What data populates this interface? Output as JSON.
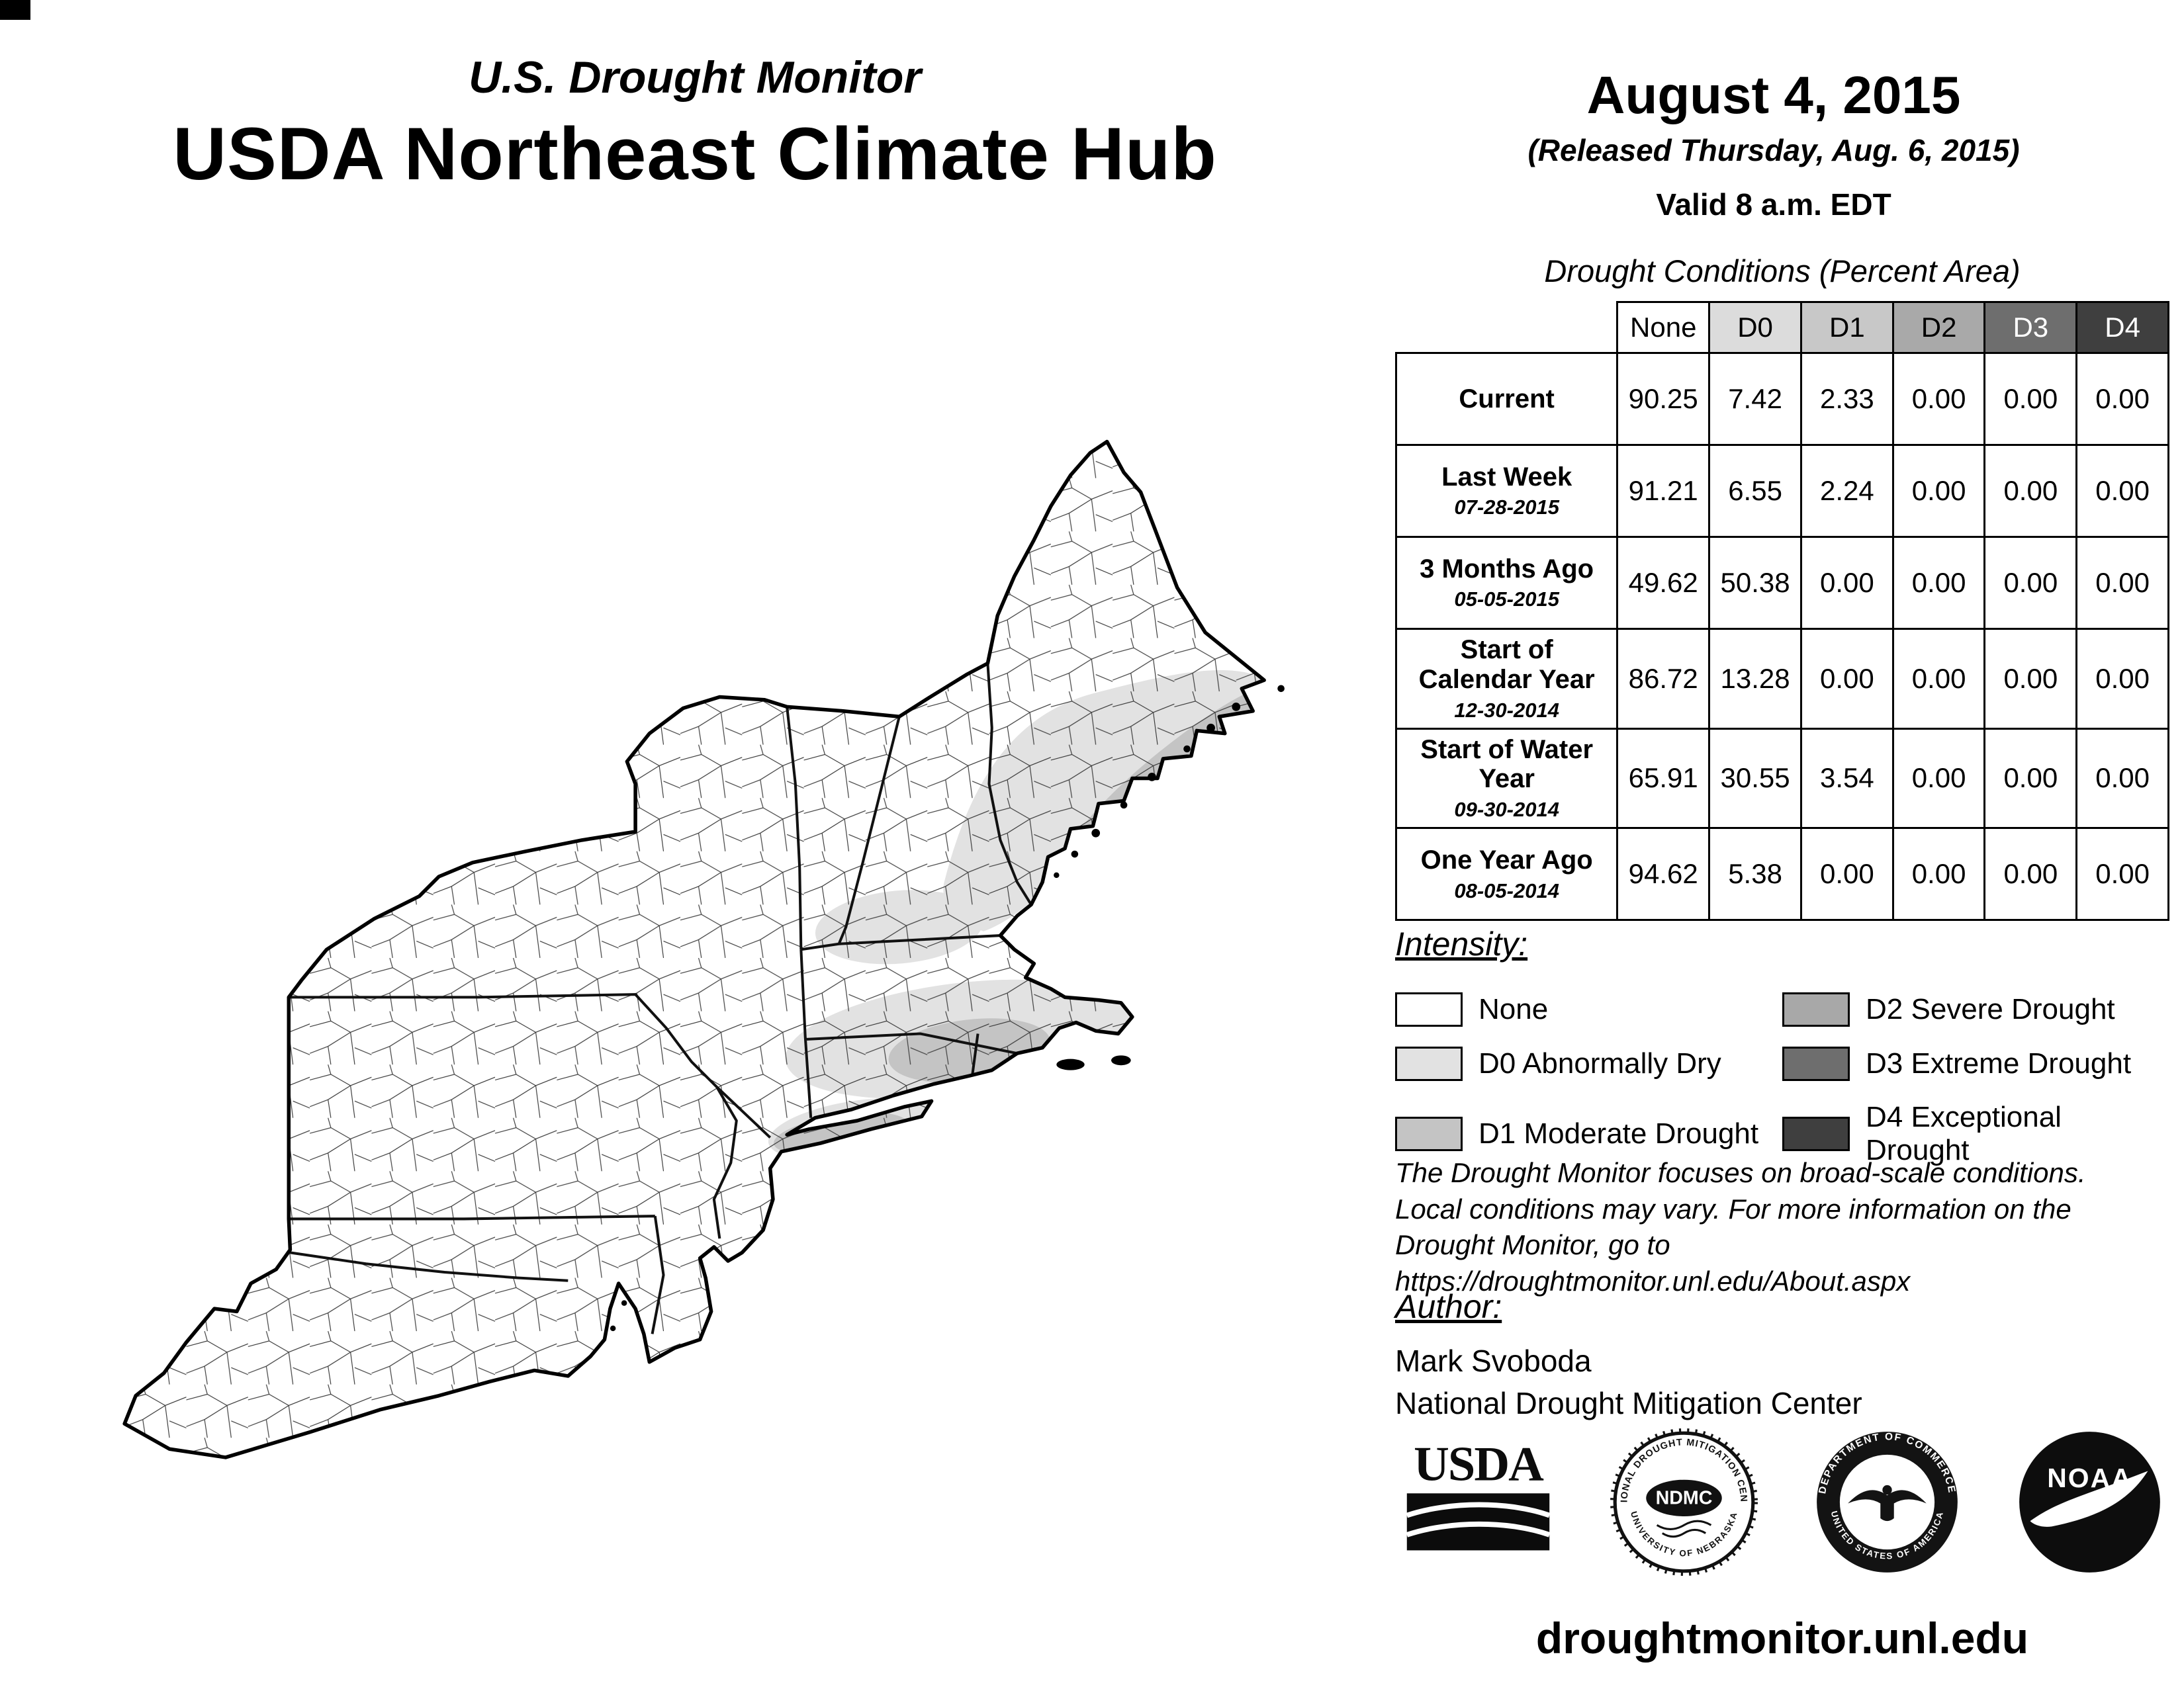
{
  "header": {
    "title_line1": "U.S. Drought Monitor",
    "title_line2": "USDA Northeast Climate Hub",
    "date": "August 4, 2015",
    "released": "(Released Thursday, Aug. 6, 2015)",
    "valid": "Valid 8 a.m. EDT"
  },
  "table": {
    "title": "Drought Conditions (Percent Area)",
    "columns": [
      "None",
      "D0",
      "D1",
      "D2",
      "D3",
      "D4"
    ],
    "header_fills": [
      "#ffffff",
      "#dcdcdc",
      "#c8c8c8",
      "#a9a9a9",
      "#6e6e6e",
      "#3f3f3f"
    ],
    "header_text": [
      "#000000",
      "#000000",
      "#000000",
      "#000000",
      "#ffffff",
      "#ffffff"
    ],
    "rows": [
      {
        "label": "Current",
        "date": "",
        "values": [
          "90.25",
          "7.42",
          "2.33",
          "0.00",
          "0.00",
          "0.00"
        ]
      },
      {
        "label": "Last Week",
        "date": "07-28-2015",
        "values": [
          "91.21",
          "6.55",
          "2.24",
          "0.00",
          "0.00",
          "0.00"
        ]
      },
      {
        "label": "3 Months Ago",
        "date": "05-05-2015",
        "values": [
          "49.62",
          "50.38",
          "0.00",
          "0.00",
          "0.00",
          "0.00"
        ]
      },
      {
        "label": "Start of Calendar Year",
        "date": "12-30-2014",
        "values": [
          "86.72",
          "13.28",
          "0.00",
          "0.00",
          "0.00",
          "0.00"
        ]
      },
      {
        "label": "Start of Water Year",
        "date": "09-30-2014",
        "values": [
          "65.91",
          "30.55",
          "3.54",
          "0.00",
          "0.00",
          "0.00"
        ]
      },
      {
        "label": "One Year Ago",
        "date": "08-05-2014",
        "values": [
          "94.62",
          "5.38",
          "0.00",
          "0.00",
          "0.00",
          "0.00"
        ]
      }
    ]
  },
  "legend": {
    "title": "Intensity:",
    "items": [
      {
        "label": "None",
        "color": "#ffffff"
      },
      {
        "label": "D0 Abnormally Dry",
        "color": "#e2e2e2"
      },
      {
        "label": "D1 Moderate Drought",
        "color": "#c4c4c4"
      },
      {
        "label": "D2 Severe Drought",
        "color": "#a8a8a8"
      },
      {
        "label": "D3 Extreme Drought",
        "color": "#6e6e6e"
      },
      {
        "label": "D4 Exceptional Drought",
        "color": "#3f3f3f"
      }
    ]
  },
  "disclaimer": {
    "line1": "The Drought Monitor focuses on broad-scale conditions.",
    "line2": "Local conditions may vary. For more information on the",
    "line3": "Drought Monitor, go to https://droughtmonitor.unl.edu/About.aspx"
  },
  "author": {
    "title": "Author:",
    "name": "Mark Svoboda",
    "org": "National Drought Mitigation Center"
  },
  "logos": {
    "usda": "USDA",
    "ndmc_ring_top": "NATIONAL DROUGHT MITIGATION CENTER",
    "ndmc_ring_bottom": "UNIVERSITY OF NEBRASKA",
    "ndmc_center": "NDMC",
    "doc_ring_top": "DEPARTMENT OF COMMERCE",
    "doc_ring_bottom": "UNITED STATES OF AMERICA",
    "noaa": "NOAA"
  },
  "footer": {
    "url": "droughtmonitor.unl.edu"
  }
}
